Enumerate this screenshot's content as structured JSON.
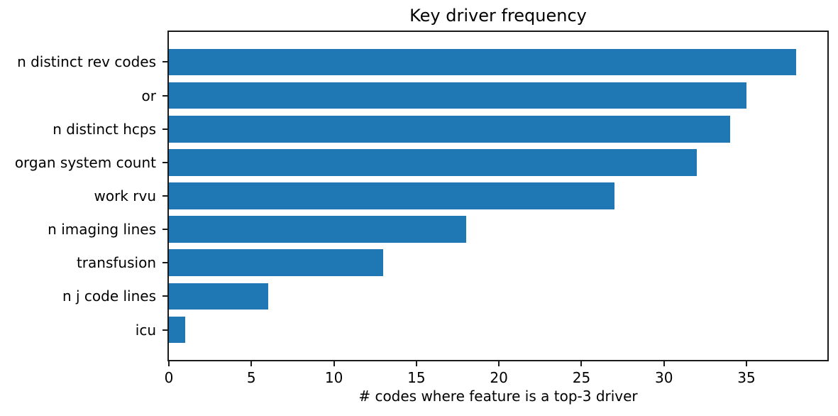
{
  "chart_data": {
    "type": "bar",
    "orientation": "horizontal",
    "title": "Key driver frequency",
    "xlabel": "# codes where feature is a top-3 driver",
    "ylabel": "",
    "categories": [
      "n distinct rev codes",
      "or",
      "n distinct hcps",
      "organ system count",
      "work rvu",
      "n imaging lines",
      "transfusion",
      "n j code lines",
      "icu"
    ],
    "values": [
      38,
      35,
      34,
      32,
      27,
      18,
      13,
      6,
      1
    ],
    "xticks": [
      0,
      5,
      10,
      15,
      20,
      25,
      30,
      35
    ],
    "xlim": [
      0,
      39.9
    ],
    "bar_color": "#1f77b4",
    "axis_color": "#1a1a1a",
    "text_color": "#000000",
    "grid": false,
    "legend": null
  }
}
